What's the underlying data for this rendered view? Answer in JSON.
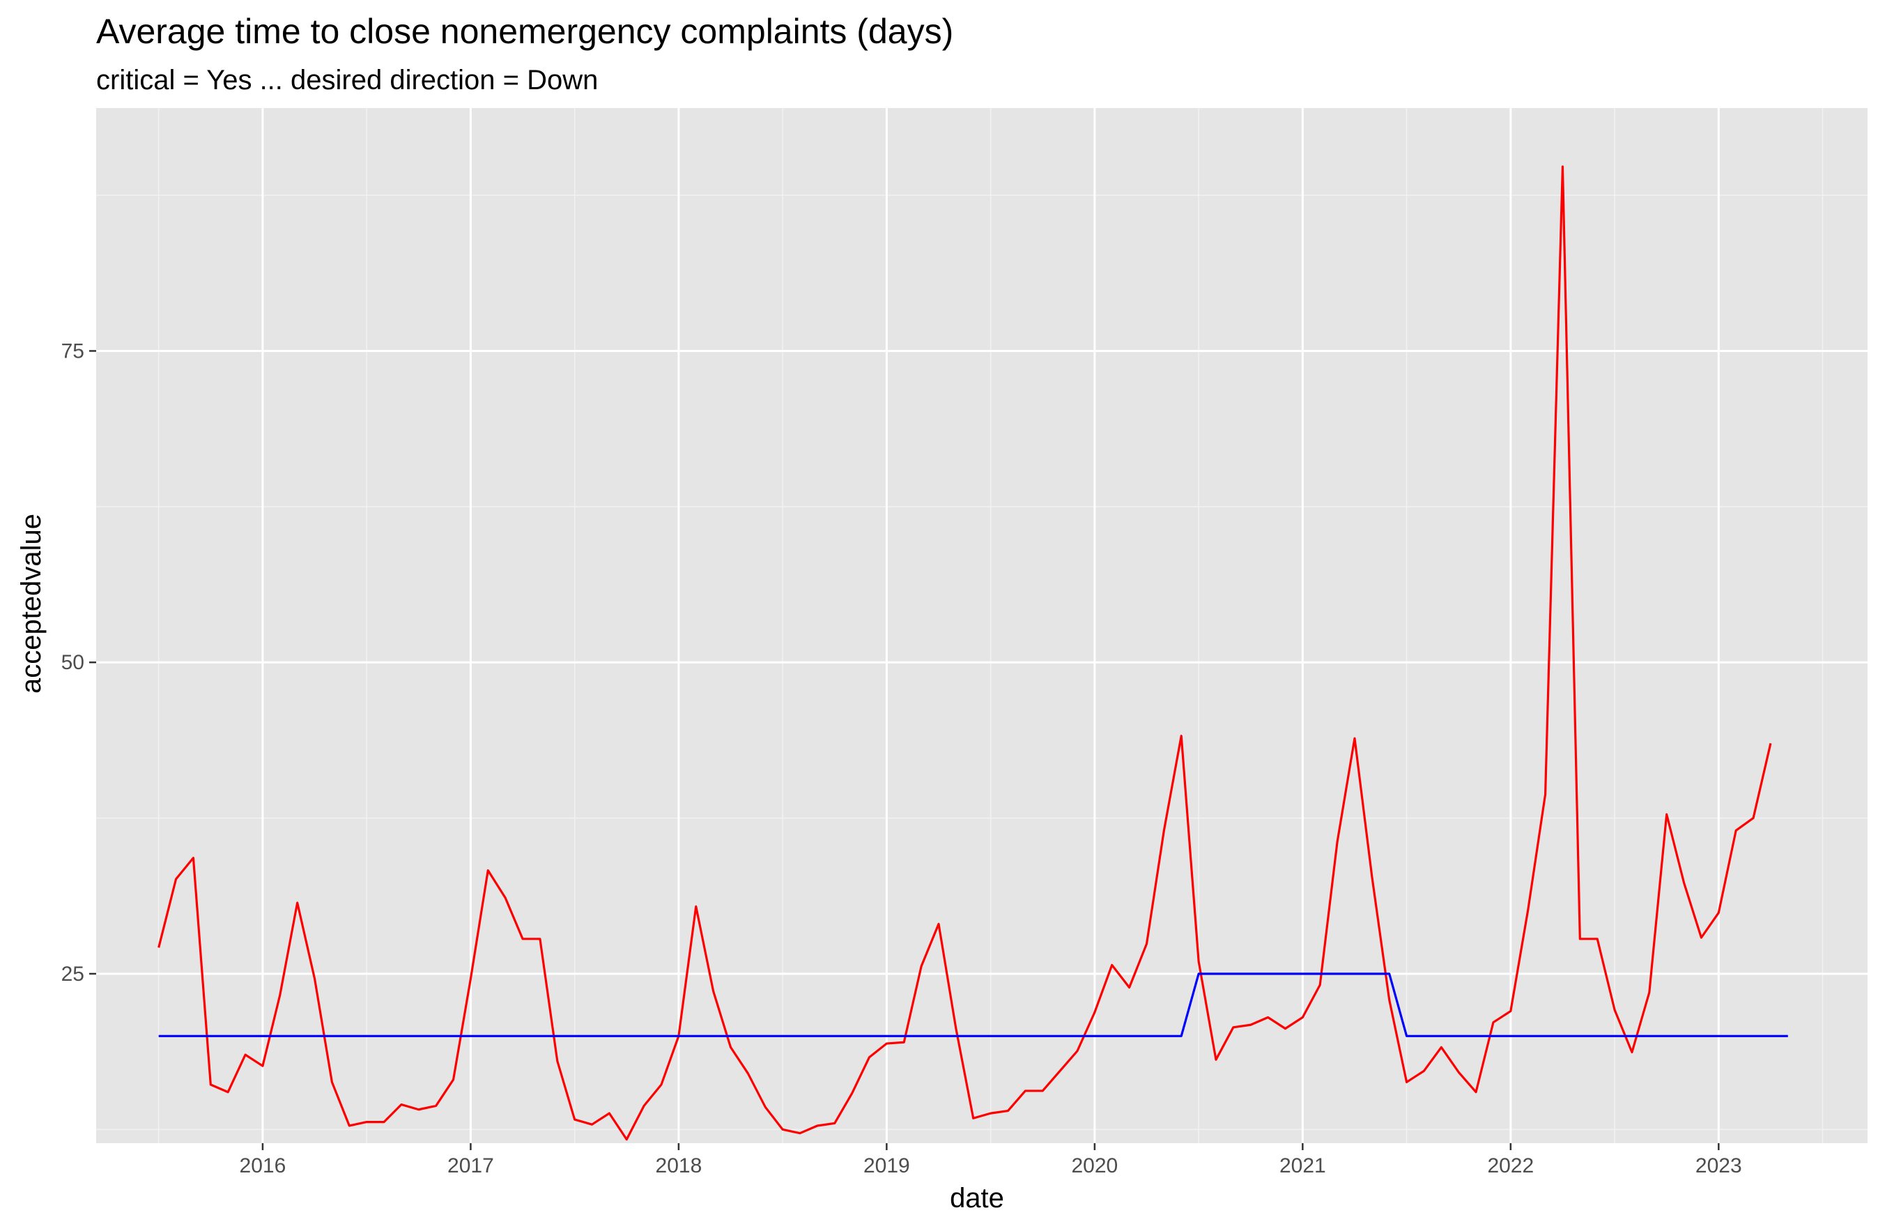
{
  "chart_data": {
    "type": "line",
    "title": "Average time to close nonemergency complaints (days)",
    "subtitle": "critical = Yes ... desired direction = Down",
    "xlabel": "date",
    "ylabel": "acceptedvalue",
    "x_ticks": [
      "2016",
      "2017",
      "2018",
      "2019",
      "2020",
      "2021",
      "2022",
      "2023"
    ],
    "y_ticks": [
      25,
      50,
      75
    ],
    "xlim": [
      "2015-03-13",
      "2023-09-19"
    ],
    "ylim": [
      11.4,
      94.5
    ],
    "grid": true,
    "series": [
      {
        "color": "#ff0000",
        "points": [
          [
            "2015-07",
            27.1
          ],
          [
            "2015-08",
            32.6
          ],
          [
            "2015-09",
            34.3
          ],
          [
            "2015-10",
            16.1
          ],
          [
            "2015-11",
            15.5
          ],
          [
            "2015-12",
            18.5
          ],
          [
            "2016-01",
            17.6
          ],
          [
            "2016-02",
            23.3
          ],
          [
            "2016-03",
            30.7
          ],
          [
            "2016-04",
            24.6
          ],
          [
            "2016-05",
            16.3
          ],
          [
            "2016-06",
            12.8
          ],
          [
            "2016-07",
            13.1
          ],
          [
            "2016-08",
            13.1
          ],
          [
            "2016-09",
            14.5
          ],
          [
            "2016-10",
            14.1
          ],
          [
            "2016-11",
            14.4
          ],
          [
            "2016-12",
            16.5
          ],
          [
            "2017-01",
            24.6
          ],
          [
            "2017-02",
            33.3
          ],
          [
            "2017-03",
            31.1
          ],
          [
            "2017-04",
            27.8
          ],
          [
            "2017-05",
            27.8
          ],
          [
            "2017-06",
            18.0
          ],
          [
            "2017-07",
            13.3
          ],
          [
            "2017-08",
            12.9
          ],
          [
            "2017-09",
            13.8
          ],
          [
            "2017-10",
            11.7
          ],
          [
            "2017-11",
            14.4
          ],
          [
            "2017-12",
            16.1
          ],
          [
            "2018-01",
            20.0
          ],
          [
            "2018-02",
            30.4
          ],
          [
            "2018-03",
            23.6
          ],
          [
            "2018-04",
            19.1
          ],
          [
            "2018-05",
            17.0
          ],
          [
            "2018-06",
            14.3
          ],
          [
            "2018-07",
            12.5
          ],
          [
            "2018-08",
            12.2
          ],
          [
            "2018-09",
            12.8
          ],
          [
            "2018-10",
            13.0
          ],
          [
            "2018-11",
            15.4
          ],
          [
            "2018-12",
            18.3
          ],
          [
            "2019-01",
            19.4
          ],
          [
            "2019-02",
            19.5
          ],
          [
            "2019-03",
            25.6
          ],
          [
            "2019-04",
            29.0
          ],
          [
            "2019-05",
            20.6
          ],
          [
            "2019-06",
            13.4
          ],
          [
            "2019-07",
            13.8
          ],
          [
            "2019-08",
            14.0
          ],
          [
            "2019-09",
            15.6
          ],
          [
            "2019-10",
            15.6
          ],
          [
            "2019-11",
            17.2
          ],
          [
            "2019-12",
            18.8
          ],
          [
            "2020-01",
            21.9
          ],
          [
            "2020-02",
            25.7
          ],
          [
            "2020-03",
            23.9
          ],
          [
            "2020-04",
            27.4
          ],
          [
            "2020-05",
            36.5
          ],
          [
            "2020-06",
            44.1
          ],
          [
            "2020-07",
            26.0
          ],
          [
            "2020-08",
            18.1
          ],
          [
            "2020-09",
            20.7
          ],
          [
            "2020-10",
            20.9
          ],
          [
            "2020-11",
            21.5
          ],
          [
            "2020-12",
            20.6
          ],
          [
            "2021-01",
            21.5
          ],
          [
            "2021-02",
            24.1
          ],
          [
            "2021-03",
            35.6
          ],
          [
            "2021-04",
            43.9
          ],
          [
            "2021-05",
            32.8
          ],
          [
            "2021-06",
            22.9
          ],
          [
            "2021-07",
            16.3
          ],
          [
            "2021-08",
            17.2
          ],
          [
            "2021-09",
            19.1
          ],
          [
            "2021-10",
            17.1
          ],
          [
            "2021-11",
            15.5
          ],
          [
            "2021-12",
            21.1
          ],
          [
            "2022-01",
            22.0
          ],
          [
            "2022-02",
            30.1
          ],
          [
            "2022-03",
            39.4
          ],
          [
            "2022-04",
            89.8
          ],
          [
            "2022-05",
            27.8
          ],
          [
            "2022-06",
            27.8
          ],
          [
            "2022-07",
            22.1
          ],
          [
            "2022-08",
            18.7
          ],
          [
            "2022-09",
            23.5
          ],
          [
            "2022-10",
            37.8
          ],
          [
            "2022-11",
            32.3
          ],
          [
            "2022-12",
            27.9
          ],
          [
            "2023-01",
            29.9
          ],
          [
            "2023-02",
            36.5
          ],
          [
            "2023-03",
            37.5
          ],
          [
            "2023-04",
            43.5
          ]
        ]
      },
      {
        "color": "#0000ff",
        "points": [
          [
            "2015-07",
            20.0
          ],
          [
            "2020-06",
            20.0
          ],
          [
            "2020-07",
            25.0
          ],
          [
            "2021-06",
            25.0
          ],
          [
            "2021-07",
            20.0
          ],
          [
            "2023-05",
            20.0
          ]
        ]
      }
    ]
  }
}
